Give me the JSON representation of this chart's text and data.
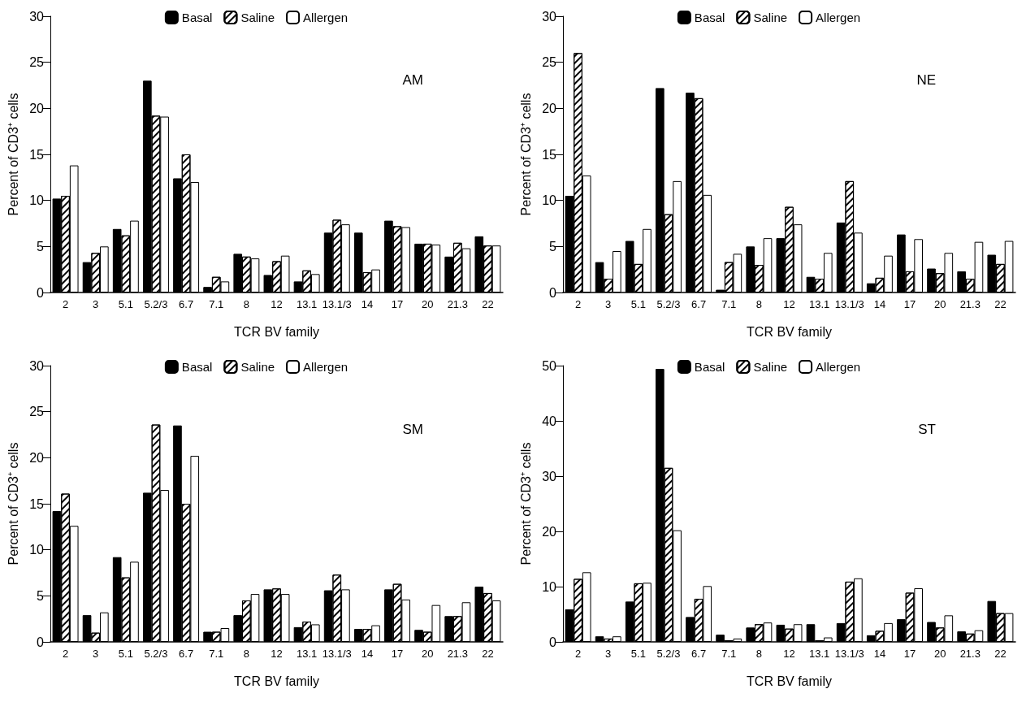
{
  "chart_data": [
    {
      "type": "bar",
      "annotations": [
        "AM"
      ],
      "xlabel": "TCR BV family",
      "ylabel": "Percent of CD3⁺ cells",
      "categories": [
        "2",
        "3",
        "5.1",
        "5.2/3",
        "6.7",
        "7.1",
        "8",
        "12",
        "13.1",
        "13.1/3",
        "14",
        "17",
        "20",
        "21.3",
        "22"
      ],
      "ylim": [
        0,
        30
      ],
      "yticks": [
        0,
        5,
        10,
        15,
        20,
        25,
        30
      ],
      "grid": false,
      "legend": "top",
      "series": [
        {
          "name": "Basal",
          "color": "#000000",
          "values": [
            10.2,
            3.3,
            6.9,
            23.0,
            12.4,
            0.6,
            4.2,
            1.9,
            1.2,
            6.5,
            6.5,
            7.8,
            5.3,
            3.9,
            6.1
          ]
        },
        {
          "name": "Saline",
          "color": "#ffffff",
          "values": [
            10.5,
            4.3,
            6.2,
            19.2,
            15.0,
            1.7,
            3.9,
            3.4,
            2.4,
            7.9,
            2.2,
            7.2,
            5.3,
            5.4,
            5.1
          ]
        },
        {
          "name": "Allergen",
          "color": "#ffffff",
          "values": [
            13.8,
            5.0,
            7.8,
            19.1,
            12.0,
            1.2,
            3.7,
            4.0,
            2.0,
            7.4,
            2.5,
            7.1,
            5.2,
            4.8,
            5.1
          ]
        }
      ]
    },
    {
      "type": "bar",
      "annotations": [
        "NE"
      ],
      "xlabel": "TCR BV family",
      "ylabel": "Percent of CD3⁺ cells",
      "categories": [
        "2",
        "3",
        "5.1",
        "5.2/3",
        "6.7",
        "7.1",
        "8",
        "12",
        "13.1",
        "13.1/3",
        "14",
        "17",
        "20",
        "21.3",
        "22"
      ],
      "ylim": [
        0,
        30
      ],
      "yticks": [
        0,
        5,
        10,
        15,
        20,
        25,
        30
      ],
      "grid": false,
      "legend": "top",
      "series": [
        {
          "name": "Basal",
          "color": "#000000",
          "values": [
            10.5,
            3.3,
            5.6,
            22.2,
            21.7,
            0.3,
            5.0,
            5.9,
            1.7,
            7.6,
            1.0,
            6.3,
            2.6,
            2.3,
            4.1
          ]
        },
        {
          "name": "Saline",
          "color": "#ffffff",
          "values": [
            26.0,
            1.5,
            3.1,
            8.5,
            21.1,
            3.3,
            3.0,
            9.3,
            1.5,
            12.1,
            1.6,
            2.3,
            2.1,
            1.5,
            3.1
          ]
        },
        {
          "name": "Allergen",
          "color": "#ffffff",
          "values": [
            12.7,
            4.5,
            6.9,
            12.1,
            10.6,
            4.2,
            5.9,
            7.4,
            4.3,
            6.5,
            4.0,
            5.8,
            4.3,
            5.5,
            5.6
          ]
        }
      ]
    },
    {
      "type": "bar",
      "annotations": [
        "SM"
      ],
      "xlabel": "TCR BV family",
      "ylabel": "Percent of CD3⁺ cells",
      "categories": [
        "2",
        "3",
        "5.1",
        "5.2/3",
        "6.7",
        "7.1",
        "8",
        "12",
        "13.1",
        "13.1/3",
        "14",
        "17",
        "20",
        "21.3",
        "22"
      ],
      "ylim": [
        0,
        30
      ],
      "yticks": [
        0,
        5,
        10,
        15,
        20,
        25,
        30
      ],
      "grid": false,
      "legend": "top",
      "series": [
        {
          "name": "Basal",
          "color": "#000000",
          "values": [
            14.2,
            2.9,
            9.2,
            16.2,
            23.5,
            1.1,
            2.9,
            5.7,
            1.6,
            5.6,
            1.4,
            5.7,
            1.3,
            2.8,
            6.0
          ]
        },
        {
          "name": "Saline",
          "color": "#ffffff",
          "values": [
            16.1,
            1.0,
            7.0,
            23.6,
            15.0,
            1.1,
            4.5,
            5.8,
            2.2,
            7.3,
            1.4,
            6.3,
            1.1,
            2.8,
            5.3
          ]
        },
        {
          "name": "Allergen",
          "color": "#ffffff",
          "values": [
            12.6,
            3.2,
            8.7,
            16.5,
            20.2,
            1.5,
            5.2,
            5.2,
            1.9,
            5.7,
            1.8,
            4.6,
            4.0,
            4.3,
            4.5
          ]
        }
      ]
    },
    {
      "type": "bar",
      "annotations": [
        "ST"
      ],
      "xlabel": "TCR BV family",
      "ylabel": "Percent of CD3⁺ cells",
      "categories": [
        "2",
        "3",
        "5.1",
        "5.2/3",
        "6.7",
        "7.1",
        "8",
        "12",
        "13.1",
        "13.1/3",
        "14",
        "17",
        "20",
        "21.3",
        "22"
      ],
      "ylim": [
        0,
        50
      ],
      "yticks": [
        0,
        10,
        20,
        30,
        40,
        50
      ],
      "grid": false,
      "legend": "top",
      "series": [
        {
          "name": "Basal",
          "color": "#000000",
          "values": [
            5.9,
            1.0,
            7.3,
            49.4,
            4.5,
            1.3,
            2.6,
            3.1,
            3.2,
            3.4,
            1.2,
            4.1,
            3.6,
            1.9,
            7.4
          ]
        },
        {
          "name": "Saline",
          "color": "#ffffff",
          "values": [
            11.4,
            0.6,
            10.6,
            31.5,
            7.8,
            0.3,
            3.2,
            2.4,
            0.3,
            10.9,
            2.0,
            8.9,
            2.6,
            1.5,
            5.2
          ]
        },
        {
          "name": "Allergen",
          "color": "#ffffff",
          "values": [
            12.6,
            1.0,
            10.7,
            20.2,
            10.1,
            0.6,
            3.5,
            3.2,
            0.8,
            11.5,
            3.4,
            9.7,
            4.8,
            2.1,
            5.2
          ]
        }
      ]
    }
  ]
}
